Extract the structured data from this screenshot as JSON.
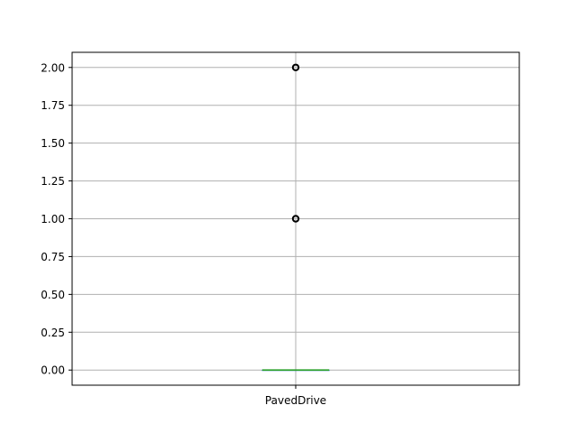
{
  "chart_data": {
    "type": "box",
    "categories": [
      "PavedDrive"
    ],
    "xlabel": "",
    "ylabel": "",
    "title": "",
    "ylim": [
      -0.1,
      2.1
    ],
    "yticks": [
      0.0,
      0.25,
      0.5,
      0.75,
      1.0,
      1.25,
      1.5,
      1.75,
      2.0
    ],
    "ytick_labels": [
      "0.00",
      "0.25",
      "0.50",
      "0.75",
      "1.00",
      "1.25",
      "1.50",
      "1.75",
      "2.00"
    ],
    "grid": true,
    "boxes": [
      {
        "name": "PavedDrive",
        "q1": 0,
        "median": 0,
        "q3": 0,
        "whisker_low": 0,
        "whisker_high": 0,
        "outliers": [
          1,
          2
        ]
      }
    ],
    "colors": {
      "box": "#1f77b4",
      "median": "#2ca02c",
      "grid": "#b0b0b0",
      "outlier": "#000000"
    }
  }
}
